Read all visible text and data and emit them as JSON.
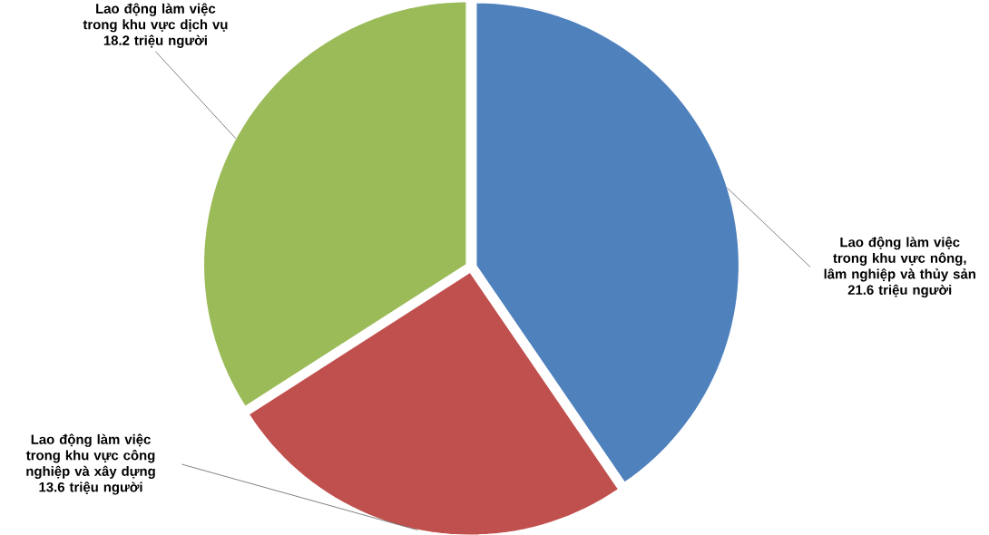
{
  "chart_data": {
    "type": "pie",
    "categories": [
      "Lao động làm việc trong khu vực nông, lâm nghiệp và thủy sản",
      "Lao động làm việc trong khu vực công nghiệp và xây dựng",
      "Lao động làm việc trong khu vực dịch vụ"
    ],
    "values": [
      21.6,
      13.6,
      18.2
    ],
    "colors": [
      "#4f81bd",
      "#c0504d",
      "#9bbb59"
    ],
    "value_labels": [
      "21.6 triệu người",
      "13.6 triệu người",
      "18.2 triệu người"
    ]
  }
}
